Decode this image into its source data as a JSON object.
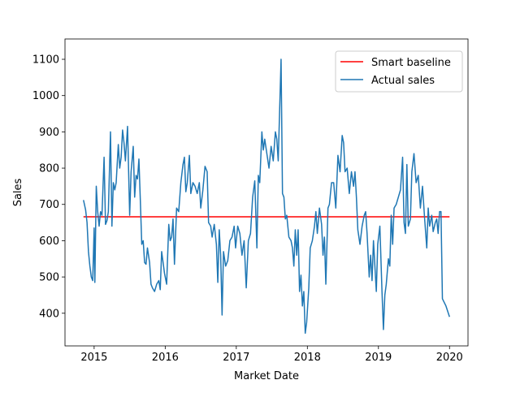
{
  "chart_data": {
    "type": "line",
    "xlabel": "Market Date",
    "ylabel": "Sales",
    "xlim": [
      2014.59,
      2020.26
    ],
    "ylim": [
      310,
      1156
    ],
    "xticks": [
      2015,
      2016,
      2017,
      2018,
      2019,
      2020
    ],
    "yticks": [
      400,
      500,
      600,
      700,
      800,
      900,
      1000,
      1100
    ],
    "legend": "upper right",
    "series": [
      {
        "name": "Smart baseline",
        "color": "#ff0000",
        "x": [
          2014.85,
          2020.0
        ],
        "values": [
          666,
          666
        ]
      },
      {
        "name": "Actual sales",
        "color": "#1f77b4",
        "x": [
          2014.85,
          2014.88,
          2014.9,
          2014.92,
          2014.94,
          2014.96,
          2014.98,
          2015.0,
          2015.01,
          2015.03,
          2015.05,
          2015.07,
          2015.09,
          2015.11,
          2015.14,
          2015.16,
          2015.18,
          2015.2,
          2015.23,
          2015.25,
          2015.27,
          2015.29,
          2015.31,
          2015.34,
          2015.36,
          2015.38,
          2015.4,
          2015.42,
          2015.44,
          2015.47,
          2015.5,
          2015.52,
          2015.55,
          2015.57,
          2015.59,
          2015.61,
          2015.63,
          2015.65,
          2015.67,
          2015.69,
          2015.71,
          2015.73,
          2015.75,
          2015.78,
          2015.8,
          2015.82,
          2015.85,
          2015.88,
          2015.91,
          2015.93,
          2015.95,
          2015.97,
          2015.99,
          2016.02,
          2016.05,
          2016.07,
          2016.09,
          2016.11,
          2016.13,
          2016.16,
          2016.19,
          2016.22,
          2016.25,
          2016.27,
          2016.29,
          2016.31,
          2016.34,
          2016.36,
          2016.39,
          2016.42,
          2016.45,
          2016.48,
          2016.5,
          2016.53,
          2016.56,
          2016.59,
          2016.61,
          2016.64,
          2016.66,
          2016.69,
          2016.72,
          2016.74,
          2016.76,
          2016.78,
          2016.8,
          2016.82,
          2016.85,
          2016.88,
          2016.91,
          2016.94,
          2016.97,
          2016.99,
          2017.02,
          2017.05,
          2017.08,
          2017.11,
          2017.14,
          2017.17,
          2017.2,
          2017.23,
          2017.26,
          2017.29,
          2017.31,
          2017.33,
          2017.36,
          2017.38,
          2017.4,
          2017.43,
          2017.46,
          2017.49,
          2017.52,
          2017.55,
          2017.57,
          2017.59,
          2017.61,
          2017.63,
          2017.65,
          2017.67,
          2017.69,
          2017.71,
          2017.74,
          2017.77,
          2017.79,
          2017.81,
          2017.83,
          2017.85,
          2017.87,
          2017.89,
          2017.91,
          2017.93,
          2017.95,
          2017.97,
          2017.99,
          2018.02,
          2018.04,
          2018.07,
          2018.1,
          2018.12,
          2018.14,
          2018.17,
          2018.2,
          2018.22,
          2018.24,
          2018.26,
          2018.29,
          2018.31,
          2018.34,
          2018.37,
          2018.4,
          2018.43,
          2018.46,
          2018.49,
          2018.51,
          2018.53,
          2018.56,
          2018.59,
          2018.62,
          2018.65,
          2018.67,
          2018.69,
          2018.71,
          2018.74,
          2018.77,
          2018.8,
          2018.82,
          2018.84,
          2018.87,
          2018.89,
          2018.91,
          2018.93,
          2018.95,
          2018.97,
          2018.99,
          2019.02,
          2019.05,
          2019.07,
          2019.09,
          2019.11,
          2019.14,
          2019.16,
          2019.18,
          2019.2,
          2019.22,
          2019.25,
          2019.28,
          2019.31,
          2019.34,
          2019.36,
          2019.38,
          2019.4,
          2019.42,
          2019.45,
          2019.47,
          2019.5,
          2019.53,
          2019.56,
          2019.59,
          2019.62,
          2019.65,
          2019.68,
          2019.7,
          2019.72,
          2019.75,
          2019.77,
          2019.8,
          2019.82,
          2019.84,
          2019.86,
          2019.88,
          2019.9,
          2019.95,
          2020.0
        ],
        "values": [
          712,
          685,
          650,
          570,
          530,
          500,
          490,
          635,
          485,
          750,
          680,
          640,
          680,
          670,
          830,
          645,
          655,
          680,
          900,
          640,
          760,
          740,
          760,
          865,
          800,
          830,
          905,
          870,
          820,
          915,
          670,
          790,
          860,
          720,
          780,
          770,
          825,
          710,
          590,
          600,
          540,
          535,
          580,
          540,
          480,
          470,
          460,
          480,
          490,
          465,
          570,
          540,
          510,
          480,
          645,
          600,
          610,
          660,
          535,
          690,
          680,
          760,
          810,
          830,
          735,
          760,
          835,
          730,
          760,
          750,
          730,
          760,
          690,
          740,
          805,
          790,
          650,
          640,
          610,
          645,
          590,
          485,
          630,
          560,
          395,
          570,
          530,
          545,
          600,
          610,
          640,
          580,
          640,
          620,
          560,
          600,
          470,
          600,
          620,
          720,
          765,
          580,
          780,
          760,
          900,
          850,
          880,
          840,
          800,
          860,
          820,
          900,
          880,
          820,
          960,
          1100,
          730,
          720,
          660,
          670,
          610,
          600,
          580,
          530,
          630,
          560,
          630,
          460,
          505,
          420,
          460,
          345,
          375,
          470,
          580,
          600,
          640,
          680,
          620,
          690,
          645,
          560,
          610,
          480,
          690,
          700,
          760,
          760,
          690,
          835,
          790,
          890,
          870,
          790,
          800,
          730,
          790,
          750,
          790,
          720,
          630,
          590,
          640,
          670,
          680,
          620,
          500,
          560,
          490,
          600,
          530,
          460,
          590,
          640,
          460,
          355,
          450,
          480,
          550,
          530,
          670,
          590,
          690,
          700,
          720,
          740,
          830,
          650,
          620,
          810,
          640,
          660,
          790,
          840,
          760,
          780,
          690,
          750,
          660,
          580,
          690,
          640,
          670,
          625,
          650,
          660,
          620,
          680,
          680,
          440,
          420,
          390
        ]
      }
    ]
  }
}
